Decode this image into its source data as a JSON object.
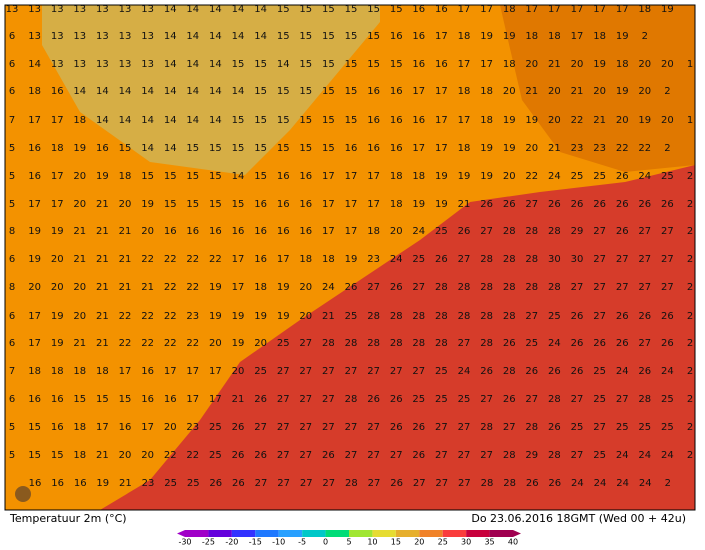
{
  "footer": {
    "left": "Temperatuur 2m (°C)",
    "right": "Do 23.06.2016 18GMT (Wed 00 + 42u)"
  },
  "grid": {
    "rows": [
      [
        13,
        13,
        13,
        13,
        13,
        13,
        13,
        14,
        14,
        14,
        14,
        14,
        15,
        15,
        15,
        15,
        15,
        15,
        16,
        16,
        17,
        17,
        18,
        17,
        17,
        17,
        17,
        17,
        18,
        19
      ],
      [
        6,
        13,
        13,
        13,
        13,
        13,
        13,
        14,
        14,
        14,
        14,
        14,
        15,
        15,
        15,
        15,
        15,
        16,
        16,
        17,
        18,
        19,
        19,
        18,
        18,
        17,
        18,
        19,
        2
      ],
      [
        6,
        14,
        13,
        13,
        13,
        13,
        13,
        14,
        14,
        14,
        15,
        15,
        14,
        15,
        15,
        15,
        15,
        15,
        16,
        16,
        17,
        17,
        18,
        20,
        21,
        20,
        19,
        18,
        20,
        20,
        1
      ],
      [
        6,
        18,
        16,
        14,
        14,
        14,
        14,
        14,
        14,
        14,
        14,
        15,
        15,
        15,
        15,
        15,
        16,
        16,
        17,
        17,
        18,
        18,
        20,
        21,
        20,
        21,
        20,
        19,
        20,
        2
      ],
      [
        7,
        17,
        17,
        18,
        14,
        14,
        14,
        14,
        14,
        14,
        15,
        15,
        15,
        15,
        15,
        15,
        16,
        16,
        16,
        17,
        17,
        18,
        19,
        19,
        20,
        22,
        21,
        20,
        19,
        20,
        1
      ],
      [
        5,
        16,
        18,
        19,
        16,
        15,
        14,
        14,
        15,
        15,
        15,
        15,
        15,
        15,
        15,
        16,
        16,
        16,
        17,
        17,
        18,
        19,
        19,
        20,
        21,
        23,
        23,
        22,
        22,
        2
      ],
      [
        5,
        16,
        17,
        20,
        19,
        18,
        15,
        15,
        15,
        15,
        14,
        15,
        16,
        16,
        17,
        17,
        17,
        18,
        18,
        19,
        19,
        19,
        20,
        22,
        24,
        25,
        25,
        26,
        24,
        25,
        2
      ],
      [
        5,
        17,
        17,
        20,
        21,
        20,
        19,
        15,
        15,
        15,
        15,
        16,
        16,
        16,
        17,
        17,
        17,
        18,
        19,
        19,
        21,
        26,
        26,
        27,
        26,
        26,
        26,
        26,
        26,
        26,
        2
      ],
      [
        8,
        19,
        19,
        21,
        21,
        21,
        20,
        16,
        16,
        16,
        16,
        16,
        16,
        16,
        17,
        17,
        18,
        20,
        24,
        25,
        26,
        27,
        28,
        28,
        28,
        29,
        27,
        26,
        27,
        27,
        2
      ],
      [
        6,
        19,
        20,
        21,
        21,
        21,
        22,
        22,
        22,
        22,
        17,
        16,
        17,
        18,
        18,
        19,
        23,
        24,
        25,
        26,
        27,
        28,
        28,
        28,
        30,
        30,
        27,
        27,
        27,
        27,
        2
      ],
      [
        8,
        20,
        20,
        20,
        21,
        21,
        21,
        22,
        22,
        19,
        17,
        18,
        19,
        20,
        24,
        26,
        27,
        26,
        27,
        28,
        28,
        28,
        28,
        28,
        28,
        27,
        27,
        27,
        27,
        27,
        2
      ],
      [
        6,
        17,
        19,
        20,
        21,
        22,
        22,
        22,
        23,
        19,
        19,
        19,
        19,
        20,
        21,
        25,
        28,
        28,
        28,
        28,
        28,
        28,
        28,
        27,
        25,
        26,
        27,
        26,
        26,
        26,
        2
      ],
      [
        6,
        17,
        19,
        21,
        21,
        22,
        22,
        22,
        22,
        20,
        19,
        20,
        25,
        27,
        28,
        28,
        28,
        28,
        28,
        28,
        27,
        28,
        26,
        25,
        24,
        26,
        26,
        26,
        27,
        26,
        2
      ],
      [
        7,
        18,
        18,
        18,
        18,
        17,
        16,
        17,
        17,
        17,
        20,
        25,
        27,
        27,
        27,
        27,
        27,
        27,
        27,
        25,
        24,
        26,
        28,
        26,
        26,
        26,
        25,
        24,
        26,
        24,
        2
      ],
      [
        6,
        16,
        16,
        15,
        15,
        15,
        16,
        16,
        17,
        17,
        21,
        26,
        27,
        27,
        27,
        28,
        26,
        26,
        25,
        25,
        25,
        27,
        26,
        27,
        28,
        27,
        25,
        27,
        28,
        25,
        2
      ],
      [
        5,
        15,
        16,
        18,
        17,
        16,
        17,
        20,
        23,
        25,
        26,
        27,
        27,
        27,
        27,
        27,
        27,
        26,
        26,
        27,
        27,
        28,
        27,
        28,
        26,
        25,
        27,
        25,
        25,
        25,
        2
      ],
      [
        5,
        15,
        15,
        18,
        21,
        20,
        20,
        22,
        22,
        25,
        26,
        26,
        27,
        27,
        26,
        27,
        27,
        27,
        26,
        27,
        27,
        27,
        28,
        29,
        28,
        27,
        25,
        24,
        24,
        24,
        2
      ],
      [
        16,
        16,
        16,
        19,
        21,
        23,
        25,
        25,
        26,
        26,
        27,
        27,
        27,
        27,
        28,
        27,
        26,
        27,
        27,
        27,
        28,
        28,
        26,
        26,
        24,
        24,
        24,
        24,
        2
      ]
    ]
  },
  "legend": {
    "ticks": [
      -30,
      -25,
      -20,
      -15,
      -10,
      -5,
      0,
      5,
      10,
      15,
      20,
      25,
      30,
      35,
      40
    ],
    "colors": [
      "#a000c8",
      "#6400dc",
      "#3232ff",
      "#1e78ff",
      "#28a0ff",
      "#00c8c8",
      "#00dc78",
      "#a0e632",
      "#e6dc32",
      "#e6af2d",
      "#f08228",
      "#fa3c3c",
      "#c8003c",
      "#a00050"
    ]
  }
}
